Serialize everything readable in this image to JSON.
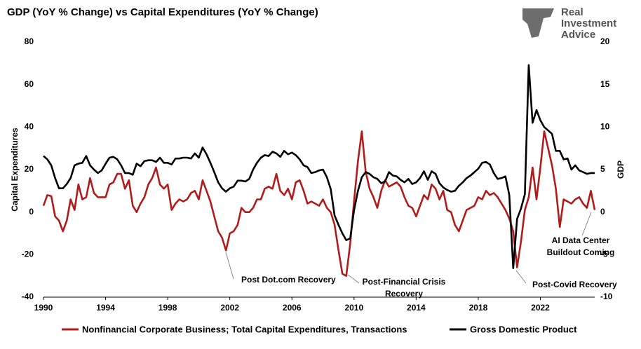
{
  "chart_data": {
    "type": "line",
    "title": "GDP (YoY % Change) vs Capital Expenditures (YoY % Change)",
    "ylabel": "Capital Expenditures",
    "y2label": "GDP",
    "xlim": [
      1990,
      2025.5
    ],
    "xticks": [
      1990,
      1994,
      1998,
      2002,
      2006,
      2010,
      2014,
      2018,
      2022
    ],
    "ylim": [
      -40,
      80
    ],
    "yticks": [
      80,
      60,
      40,
      20,
      0,
      -20,
      -40
    ],
    "y2lim": [
      -10,
      20
    ],
    "y2ticks": [
      20,
      15,
      10,
      5,
      0,
      -5,
      -10
    ],
    "grid": false,
    "legend": "bottom",
    "x": [
      1990,
      1990.25,
      1990.5,
      1990.75,
      1991,
      1991.25,
      1991.5,
      1991.75,
      1992,
      1992.25,
      1992.5,
      1992.75,
      1993,
      1993.25,
      1993.5,
      1993.75,
      1994,
      1994.25,
      1994.5,
      1994.75,
      1995,
      1995.25,
      1995.5,
      1995.75,
      1996,
      1996.25,
      1996.5,
      1996.75,
      1997,
      1997.25,
      1997.5,
      1997.75,
      1998,
      1998.25,
      1998.5,
      1998.75,
      1999,
      1999.25,
      1999.5,
      1999.75,
      2000,
      2000.25,
      2000.5,
      2000.75,
      2001,
      2001.25,
      2001.5,
      2001.75,
      2002,
      2002.25,
      2002.5,
      2002.75,
      2003,
      2003.25,
      2003.5,
      2003.75,
      2004,
      2004.25,
      2004.5,
      2004.75,
      2005,
      2005.25,
      2005.5,
      2005.75,
      2006,
      2006.25,
      2006.5,
      2006.75,
      2007,
      2007.25,
      2007.5,
      2007.75,
      2008,
      2008.25,
      2008.5,
      2008.75,
      2009,
      2009.25,
      2009.5,
      2009.75,
      2010,
      2010.25,
      2010.5,
      2010.75,
      2011,
      2011.25,
      2011.5,
      2011.75,
      2012,
      2012.25,
      2012.5,
      2012.75,
      2013,
      2013.25,
      2013.5,
      2013.75,
      2014,
      2014.25,
      2014.5,
      2014.75,
      2015,
      2015.25,
      2015.5,
      2015.75,
      2016,
      2016.25,
      2016.5,
      2016.75,
      2017,
      2017.25,
      2017.5,
      2017.75,
      2018,
      2018.25,
      2018.5,
      2018.75,
      2019,
      2019.25,
      2019.5,
      2019.75,
      2020,
      2020.25,
      2020.5,
      2020.75,
      2021,
      2021.25,
      2021.5,
      2021.75,
      2022,
      2022.25,
      2022.5,
      2022.75,
      2023,
      2023.25,
      2023.5,
      2023.75,
      2024,
      2024.25,
      2024.5,
      2024.75,
      2025,
      2025.25,
      2025.5
    ],
    "series": [
      {
        "name": "Nonfinancial Corporate Business; Total Capital Expenditures, Transactions",
        "color": "#b01c1c",
        "axis": "y",
        "values": [
          3,
          8,
          7.5,
          -2,
          -4,
          -9,
          -4,
          6,
          1,
          13,
          6,
          7,
          16,
          9,
          7,
          7,
          7,
          13,
          14,
          18,
          18,
          11,
          15,
          3,
          0,
          4,
          7,
          13,
          16,
          21,
          13,
          11,
          13,
          1,
          4,
          6,
          5,
          6,
          9,
          10,
          6,
          15,
          10,
          5,
          -2,
          -9,
          -12,
          -18,
          -10,
          -9,
          -6,
          2,
          0,
          0,
          2,
          6,
          6,
          11,
          12,
          11,
          18,
          10,
          8,
          11,
          6,
          14,
          15,
          10,
          4,
          5,
          4,
          3,
          6,
          2,
          0,
          -6,
          -18,
          -29,
          -30,
          -15,
          5,
          24,
          38,
          19,
          11,
          7,
          2,
          10,
          15,
          12,
          13,
          14,
          12,
          7,
          3,
          2,
          -2,
          3,
          8,
          6,
          13,
          11,
          6,
          10,
          1,
          0,
          -6,
          -9,
          -4,
          1,
          2,
          3,
          7,
          6,
          10,
          8,
          9,
          7,
          4,
          1,
          -3,
          -9,
          -26,
          -14,
          1,
          7,
          21,
          6,
          21,
          38,
          30,
          22,
          11,
          -7,
          6,
          5,
          4,
          6,
          7,
          4,
          2,
          10,
          1
        ]
      },
      {
        "name": "Gross Domestic Product",
        "color": "#000000",
        "axis": "y2",
        "values": [
          6.6,
          6.2,
          5.5,
          4,
          2.8,
          2.8,
          3.3,
          4,
          5.5,
          5.7,
          5.8,
          6.6,
          5.5,
          5,
          4.6,
          4.9,
          5.7,
          6.4,
          6.5,
          6.2,
          5.5,
          4.6,
          4.6,
          4.4,
          5.7,
          5.4,
          6,
          6.1,
          6.1,
          5.9,
          6.4,
          5.8,
          5.8,
          5.6,
          6.3,
          6.3,
          6.4,
          6.4,
          6.3,
          6.9,
          6.4,
          7.6,
          6.8,
          5.8,
          4.7,
          3.5,
          2.8,
          2.4,
          2.8,
          3,
          3.7,
          3.7,
          3.6,
          3.9,
          5,
          5.8,
          6.4,
          6.7,
          6.6,
          7.1,
          6.9,
          6.5,
          7.2,
          6.8,
          7,
          6.7,
          6.2,
          5.5,
          5.3,
          4.6,
          4.7,
          4.9,
          5,
          4.1,
          2.7,
          -0.4,
          -1.5,
          -2.5,
          -3.3,
          -3.1,
          0.2,
          2.5,
          4.1,
          4.7,
          4.5,
          4.1,
          3.9,
          3.4,
          3.6,
          4.7,
          4.3,
          4.2,
          3.8,
          3.5,
          3.9,
          3.3,
          3.5,
          4,
          4.8,
          3.8,
          4.8,
          4.5,
          3.4,
          2.9,
          2.6,
          2.4,
          2.5,
          3.1,
          3.5,
          4,
          4.3,
          4.7,
          5.1,
          5.8,
          5.9,
          5.6,
          4.6,
          3.9,
          4,
          4.2,
          2,
          -6.6,
          -0.8,
          0.4,
          2.1,
          17.3,
          10.5,
          12,
          10.8,
          10,
          9.6,
          9.2,
          7.2,
          7.2,
          6.2,
          6.3,
          5,
          5.5,
          4.9,
          4.7,
          4.5,
          4.6,
          4.6
        ]
      }
    ],
    "annotations": [
      {
        "text": [
          "Post Dot.com Recovery"
        ]
      },
      {
        "text": [
          "Post-Financial Crisis",
          "Recovery"
        ]
      },
      {
        "text": [
          "Post-Covid Recovery"
        ]
      },
      {
        "text": [
          "AI Data Center",
          "Buildout Coming"
        ]
      }
    ]
  },
  "logo": [
    "Real",
    "Investment",
    "Advice"
  ]
}
